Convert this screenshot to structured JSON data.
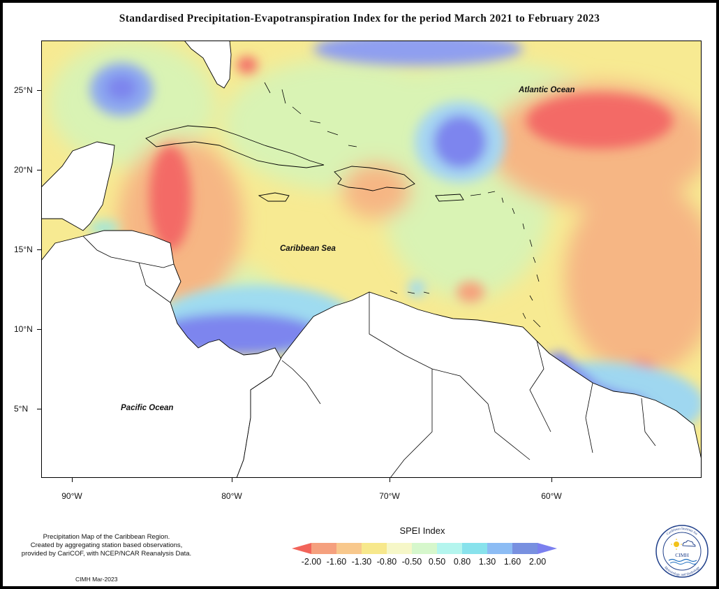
{
  "title": "Standardised Precipitation-Evapotranspiration Index for the period March 2021 to February 2023",
  "axes": {
    "lat_ticks": [
      "25°N",
      "20°N",
      "15°N",
      "10°N",
      "5°N"
    ],
    "lon_ticks": [
      "90°W",
      "80°W",
      "70°W",
      "60°W"
    ]
  },
  "labels": {
    "atlantic": "Atlantic Ocean",
    "caribbean": "Caribbean Sea",
    "pacific": "Pacific Ocean"
  },
  "footnote": {
    "line1": "Precipitation Map of the Caribbean Region.",
    "line2": "Created by aggregating station based observations,",
    "line3": "provided by CariCOF, with NCEP/NCAR Reanalysis Data."
  },
  "credit": "CIMH Mar-2023",
  "legend": {
    "title": "SPEI Index",
    "labels": [
      "-2.00",
      "-1.60",
      "-1.30",
      "-0.80",
      "-0.50",
      "0.50",
      "0.80",
      "1.30",
      "1.60",
      "2.00"
    ],
    "colors": [
      "#f2645a",
      "#f5a07e",
      "#f8c88c",
      "#f7e88c",
      "#f6f7c8",
      "#d6f7cc",
      "#b4f5ee",
      "#88e2ec",
      "#8cbcf4",
      "#7890e0",
      "#7b80ef"
    ]
  },
  "logo": {
    "text": "CIMH",
    "ring_text_top": "Caribbean Institute for",
    "ring_text_bottom": "Meteorology and Hydrology"
  }
}
